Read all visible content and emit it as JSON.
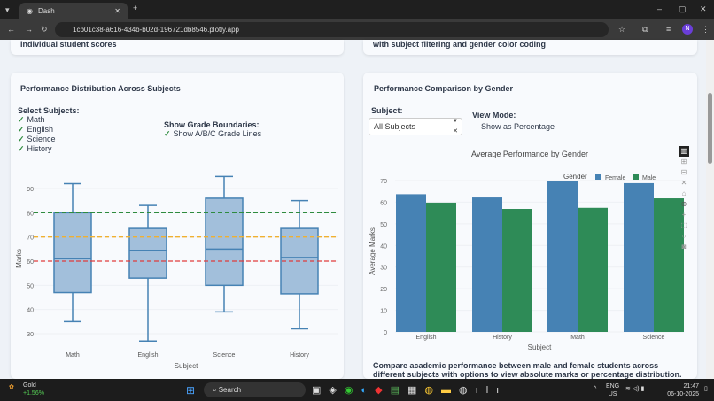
{
  "browser": {
    "tab_title": "Dash",
    "url": "1cb01c38-a616-434b-b02d-196721db8546.plotly.app",
    "profile_initial": "N"
  },
  "top_cards": {
    "left_text": "individual student scores",
    "right_text": "with subject filtering and gender color coding"
  },
  "left_card": {
    "title": "Performance Distribution Across Subjects",
    "select_label": "Select Subjects:",
    "subjects": [
      "Math",
      "English",
      "Science",
      "History"
    ],
    "grade_label": "Show Grade Boundaries:",
    "grade_option": "Show A/B/C Grade Lines"
  },
  "right_card": {
    "title": "Performance Comparison by Gender",
    "subject_label": "Subject:",
    "subject_value": "All Subjects",
    "view_label": "View Mode:",
    "view_option": "Show as Percentage",
    "description": "Compare academic performance between male and female students across different subjects with options to view absolute marks or percentage distribution."
  },
  "chart_data": [
    {
      "type": "box",
      "categories": [
        "Math",
        "English",
        "Science",
        "History"
      ],
      "stats": [
        {
          "min": 35,
          "q1": 47,
          "median": 61,
          "q3": 80,
          "max": 92
        },
        {
          "min": 27,
          "q1": 53,
          "median": 64.5,
          "q3": 73.5,
          "max": 83
        },
        {
          "min": 39,
          "q1": 50,
          "median": 65,
          "q3": 86,
          "max": 95
        },
        {
          "min": 32,
          "q1": 46.5,
          "median": 61.5,
          "q3": 73.5,
          "max": 85
        }
      ],
      "xlabel": "Subject",
      "ylabel": "Marks",
      "yticks": [
        30,
        40,
        50,
        60,
        70,
        80,
        90
      ],
      "ylim": [
        26,
        96
      ],
      "grade_lines": [
        {
          "value": 80,
          "color": "#2e8b3e"
        },
        {
          "value": 70,
          "color": "#f0b030"
        },
        {
          "value": 60,
          "color": "#e03c3c"
        }
      ],
      "box_color": "#4682b4"
    },
    {
      "type": "bar",
      "title": "Average Performance by Gender",
      "categories": [
        "English",
        "History",
        "Math",
        "Science"
      ],
      "series": [
        {
          "name": "Female",
          "values": [
            63.7,
            62.2,
            69.8,
            68.8
          ],
          "color": "#4682b4"
        },
        {
          "name": "Male",
          "values": [
            59.8,
            56.9,
            57.4,
            61.8
          ],
          "color": "#2e8b57"
        }
      ],
      "legend_title": "Gender",
      "legend_position": "top-right",
      "xlabel": "Subject",
      "ylabel": "Average Marks",
      "yticks": [
        0,
        10,
        20,
        30,
        40,
        50,
        60,
        70
      ],
      "ylim": [
        0,
        72
      ]
    }
  ],
  "taskbar": {
    "weather_label": "Gold",
    "weather_change": "+1.56%",
    "search": "Search",
    "lang": "ENG",
    "region": "US",
    "time": "21:47",
    "date": "06-10-2025"
  }
}
